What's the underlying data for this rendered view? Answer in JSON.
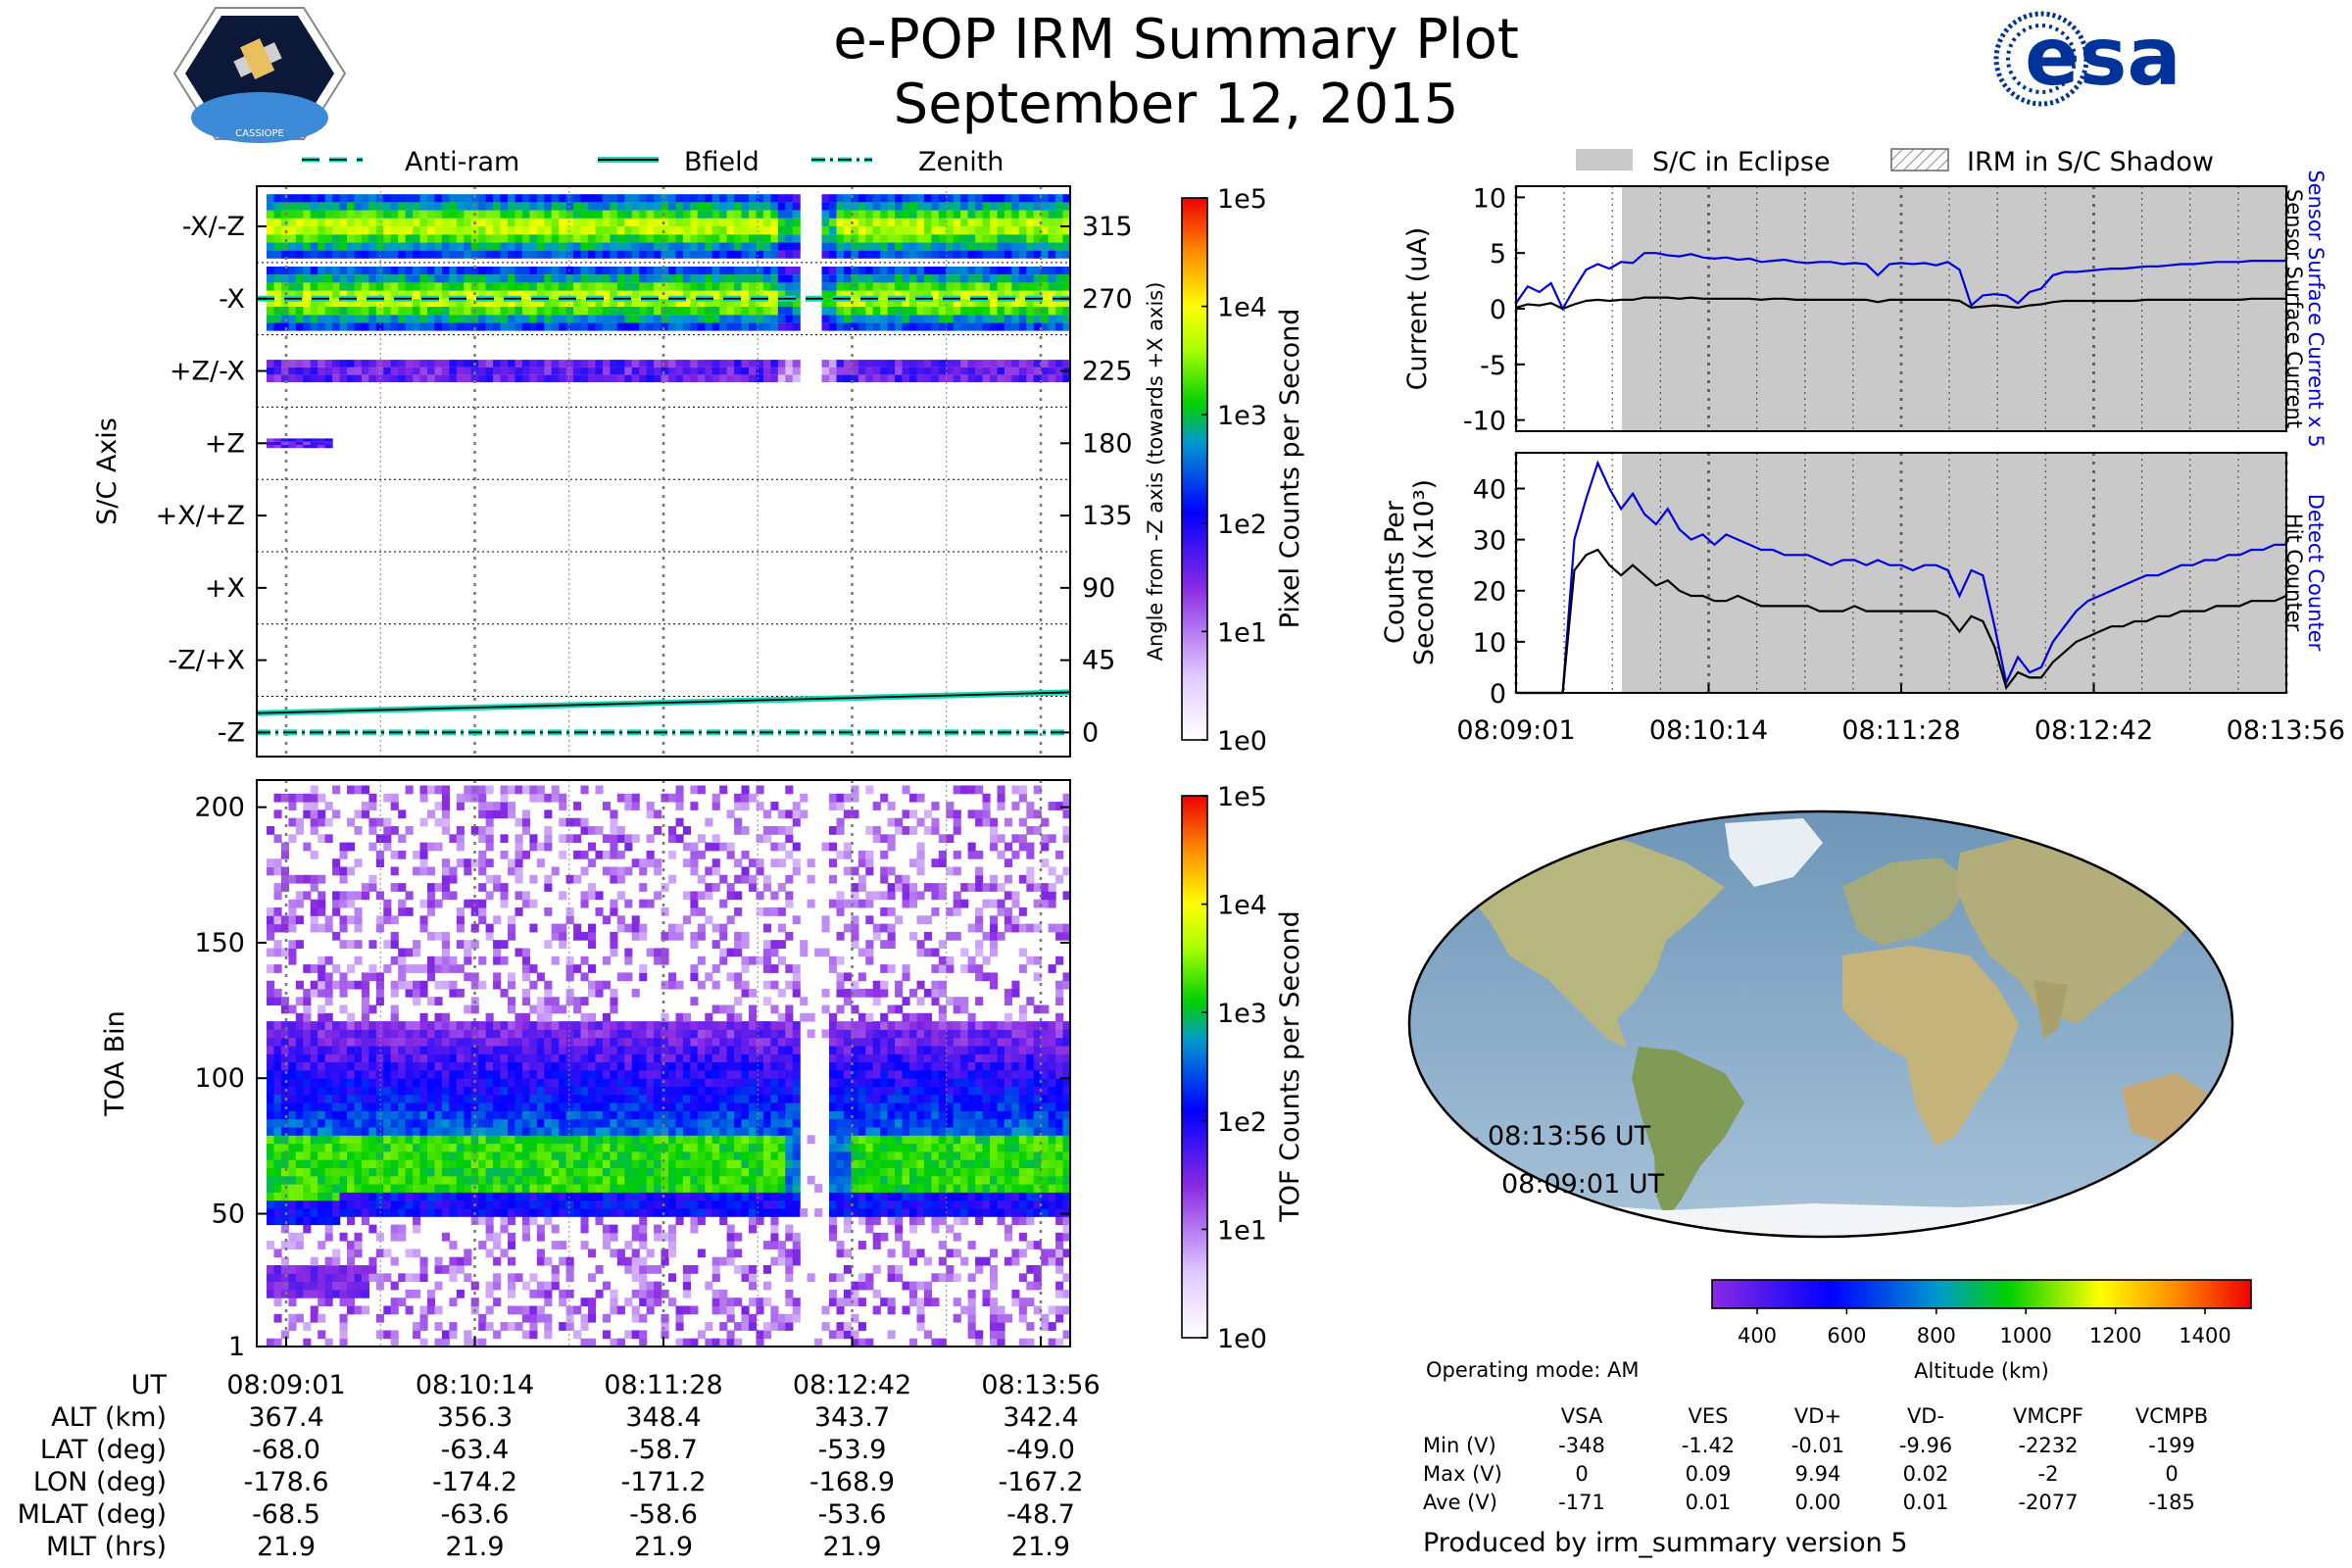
{
  "header": {
    "title_line1": "e-POP IRM Summary Plot",
    "title_line2": "September 12, 2015",
    "left_logo_text": "CASSIOPE",
    "right_logo_text": "esa"
  },
  "legend_left": {
    "items": [
      {
        "label": "Anti-ram",
        "style": "dashed"
      },
      {
        "label": "Bfield",
        "style": "solid"
      },
      {
        "label": "Zenith",
        "style": "dashdot"
      }
    ]
  },
  "legend_right": {
    "items": [
      {
        "label": "S/C in Eclipse",
        "style": "gray-fill"
      },
      {
        "label": "IRM in S/C Shadow",
        "style": "hatch"
      }
    ]
  },
  "colors": {
    "eclipse_fill": "#c8c9c8",
    "trace_blue": "#0000dd",
    "trace_black": "#000000",
    "line_cyan": "#11d8b8",
    "esa_blue": "#003399"
  },
  "colorbar_pixel": {
    "label": "Pixel Counts per Second",
    "ticks": [
      "1e5",
      "1e4",
      "1e3",
      "1e2",
      "1e1",
      "1e0"
    ]
  },
  "colorbar_tof": {
    "label": "TOF Counts per Second",
    "ticks": [
      "1e5",
      "1e4",
      "1e3",
      "1e2",
      "1e1",
      "1e0"
    ]
  },
  "colorbar_altitude": {
    "label": "Altitude (km)",
    "ticks": [
      "400",
      "600",
      "800",
      "1000",
      "1200",
      "1400"
    ]
  },
  "chart_data": [
    {
      "type": "heatmap",
      "name": "sc-axis-angle",
      "ylabel": "S/C Axis",
      "ylabel_right": "Angle from -Z axis (towards +X axis)",
      "y_axis_labels": [
        "-X/-Z",
        "-X",
        "+Z/-X",
        "+Z",
        "+X/+Z",
        "+X",
        "-Z/+X",
        "-Z"
      ],
      "y_axis_values": [
        315,
        270,
        225,
        180,
        135,
        90,
        45,
        0
      ],
      "ylim": [
        -15,
        340
      ],
      "bands": [
        {
          "center": 315,
          "half_width": 20,
          "intensity": "high"
        },
        {
          "center": 270,
          "half_width": 20,
          "intensity": "high"
        },
        {
          "center": 225,
          "half_width": 7,
          "intensity": "low"
        },
        {
          "center": 180,
          "half_width": 3,
          "intensity": "low",
          "ends_at": "08:09:19"
        }
      ],
      "lines": [
        {
          "name": "Anti-ram",
          "style": "dashed",
          "values": [
            270,
            270
          ]
        },
        {
          "name": "Bfield",
          "style": "solid",
          "values": [
            12,
            25
          ]
        },
        {
          "name": "Zenith",
          "style": "dashdot",
          "values": [
            0,
            0
          ]
        }
      ]
    },
    {
      "type": "heatmap",
      "name": "toa-spectrogram",
      "ylabel": "TOA Bin",
      "yticks": [
        1,
        50,
        100,
        150,
        200
      ],
      "ylim": [
        1,
        210
      ],
      "core_band": [
        58,
        80
      ],
      "halo_band": [
        50,
        120
      ],
      "gap": [
        "08:12:11",
        "08:12:18"
      ]
    },
    {
      "type": "line",
      "name": "sensor-current",
      "ylabel": "Current (uA)",
      "ylabel_right_1": "Sensor Surface Current x 5",
      "ylabel_right_2": "Sensor Surface Current",
      "ylim": [
        -11,
        11
      ],
      "yticks": [
        10,
        5,
        0,
        -5,
        -10
      ],
      "eclipse_start": "08:09:39",
      "series": [
        {
          "name": "Sensor Surface Current x 5",
          "color": "#0000dd",
          "values": [
            0.5,
            2.0,
            1.5,
            2.3,
            0.0,
            1.8,
            3.5,
            4.0,
            3.6,
            4.2,
            4.1,
            5.0,
            5.0,
            4.8,
            4.7,
            4.9,
            4.6,
            4.5,
            4.6,
            4.4,
            4.5,
            4.2,
            4.3,
            4.4,
            4.2,
            4.1,
            4.2,
            4.2,
            4.0,
            4.1,
            4.0,
            3.0,
            4.0,
            4.1,
            4.0,
            4.1,
            3.9,
            4.2,
            3.5,
            0.3,
            1.2,
            1.3,
            1.2,
            0.5,
            1.5,
            1.8,
            3.0,
            3.3,
            3.3,
            3.4,
            3.5,
            3.6,
            3.6,
            3.7,
            3.8,
            3.8,
            3.9,
            4.0,
            4.0,
            4.1,
            4.2,
            4.2,
            4.2,
            4.3,
            4.3,
            4.3,
            4.3
          ]
        },
        {
          "name": "Sensor Surface Current",
          "color": "#000000",
          "values": [
            0.1,
            0.4,
            0.3,
            0.5,
            0.0,
            0.4,
            0.7,
            0.8,
            0.7,
            0.8,
            0.8,
            1.0,
            1.0,
            1.0,
            0.9,
            1.0,
            0.9,
            0.9,
            0.9,
            0.9,
            0.9,
            0.8,
            0.9,
            0.9,
            0.8,
            0.8,
            0.8,
            0.8,
            0.8,
            0.8,
            0.8,
            0.6,
            0.8,
            0.8,
            0.8,
            0.8,
            0.8,
            0.8,
            0.7,
            0.1,
            0.2,
            0.3,
            0.2,
            0.1,
            0.3,
            0.4,
            0.6,
            0.7,
            0.7,
            0.7,
            0.7,
            0.7,
            0.7,
            0.7,
            0.8,
            0.8,
            0.8,
            0.8,
            0.8,
            0.8,
            0.8,
            0.8,
            0.8,
            0.9,
            0.9,
            0.9,
            0.9
          ]
        }
      ]
    },
    {
      "type": "line",
      "name": "counts-per-second",
      "ylabel_line1": "Counts Per",
      "ylabel_line2": "Second (x10³)",
      "ylabel_right_1": "Detect Counter",
      "ylabel_right_2": "Hit Counter",
      "ylim": [
        0,
        47
      ],
      "yticks": [
        40,
        30,
        20,
        10,
        0
      ],
      "xticks": [
        "08:09:01",
        "08:10:14",
        "08:11:28",
        "08:12:42",
        "08:13:56"
      ],
      "eclipse_start": "08:09:39",
      "series": [
        {
          "name": "Detect Counter",
          "color": "#0000dd",
          "values": [
            0,
            0,
            0,
            0,
            0,
            30,
            38,
            45,
            40,
            36,
            39,
            35,
            33,
            36,
            32,
            30,
            31,
            29,
            31,
            30,
            29,
            28,
            28,
            27,
            27,
            27,
            26,
            25,
            26,
            26,
            25,
            26,
            25,
            25,
            24,
            25,
            25,
            24,
            19,
            24,
            23,
            13,
            2,
            7,
            4,
            5,
            10,
            13,
            16,
            18,
            19,
            20,
            21,
            22,
            23,
            23,
            24,
            25,
            25,
            26,
            26,
            27,
            27,
            28,
            28,
            29,
            29
          ]
        },
        {
          "name": "Hit Counter",
          "color": "#000000",
          "values": [
            0,
            0,
            0,
            0,
            0,
            24,
            27,
            28,
            25,
            23,
            25,
            23,
            21,
            22,
            20,
            19,
            19,
            18,
            18,
            19,
            18,
            17,
            17,
            17,
            17,
            17,
            16,
            16,
            16,
            17,
            16,
            16,
            16,
            16,
            16,
            16,
            16,
            15,
            12,
            15,
            14,
            9,
            1,
            4,
            3,
            3,
            6,
            8,
            10,
            11,
            12,
            13,
            13,
            14,
            14,
            15,
            15,
            16,
            16,
            16,
            17,
            17,
            17,
            18,
            18,
            18,
            19
          ]
        }
      ]
    }
  ],
  "x_axis_left": {
    "ut": [
      "08:09:01",
      "08:10:14",
      "08:11:28",
      "08:12:42",
      "08:13:56"
    ]
  },
  "ephemeris": {
    "rows": [
      {
        "label": "UT",
        "values": [
          "08:09:01",
          "08:10:14",
          "08:11:28",
          "08:12:42",
          "08:13:56"
        ]
      },
      {
        "label": "ALT (km)",
        "values": [
          "367.4",
          "356.3",
          "348.4",
          "343.7",
          "342.4"
        ]
      },
      {
        "label": "LAT (deg)",
        "values": [
          "-68.0",
          "-63.4",
          "-58.7",
          "-53.9",
          "-49.0"
        ]
      },
      {
        "label": "LON (deg)",
        "values": [
          "-178.6",
          "-174.2",
          "-171.2",
          "-168.9",
          "-167.2"
        ]
      },
      {
        "label": "MLAT (deg)",
        "values": [
          "-68.5",
          "-63.6",
          "-58.6",
          "-53.6",
          "-48.7"
        ]
      },
      {
        "label": "MLT (hrs)",
        "values": [
          "21.9",
          "21.9",
          "21.9",
          "21.9",
          "21.9"
        ]
      }
    ]
  },
  "map": {
    "label_end": "08:13:56 UT",
    "label_start": "08:09:01 UT"
  },
  "voltages": {
    "operating_mode": "Operating mode: AM",
    "columns": [
      "VSA",
      "VES",
      "VD+",
      "VD-",
      "VMCPF",
      "VCMPB"
    ],
    "rows": [
      {
        "label": "Min (V)",
        "values": [
          "-348",
          "-1.42",
          "-0.01",
          "-9.96",
          "-2232",
          "-199"
        ]
      },
      {
        "label": "Max (V)",
        "values": [
          "0",
          "0.09",
          "9.94",
          "0.02",
          "-2",
          "0"
        ]
      },
      {
        "label": "Ave (V)",
        "values": [
          "-171",
          "0.01",
          "0.00",
          "0.01",
          "-2077",
          "-185"
        ]
      }
    ]
  },
  "footer": {
    "produced_by": "Produced by irm_summary version 5"
  }
}
